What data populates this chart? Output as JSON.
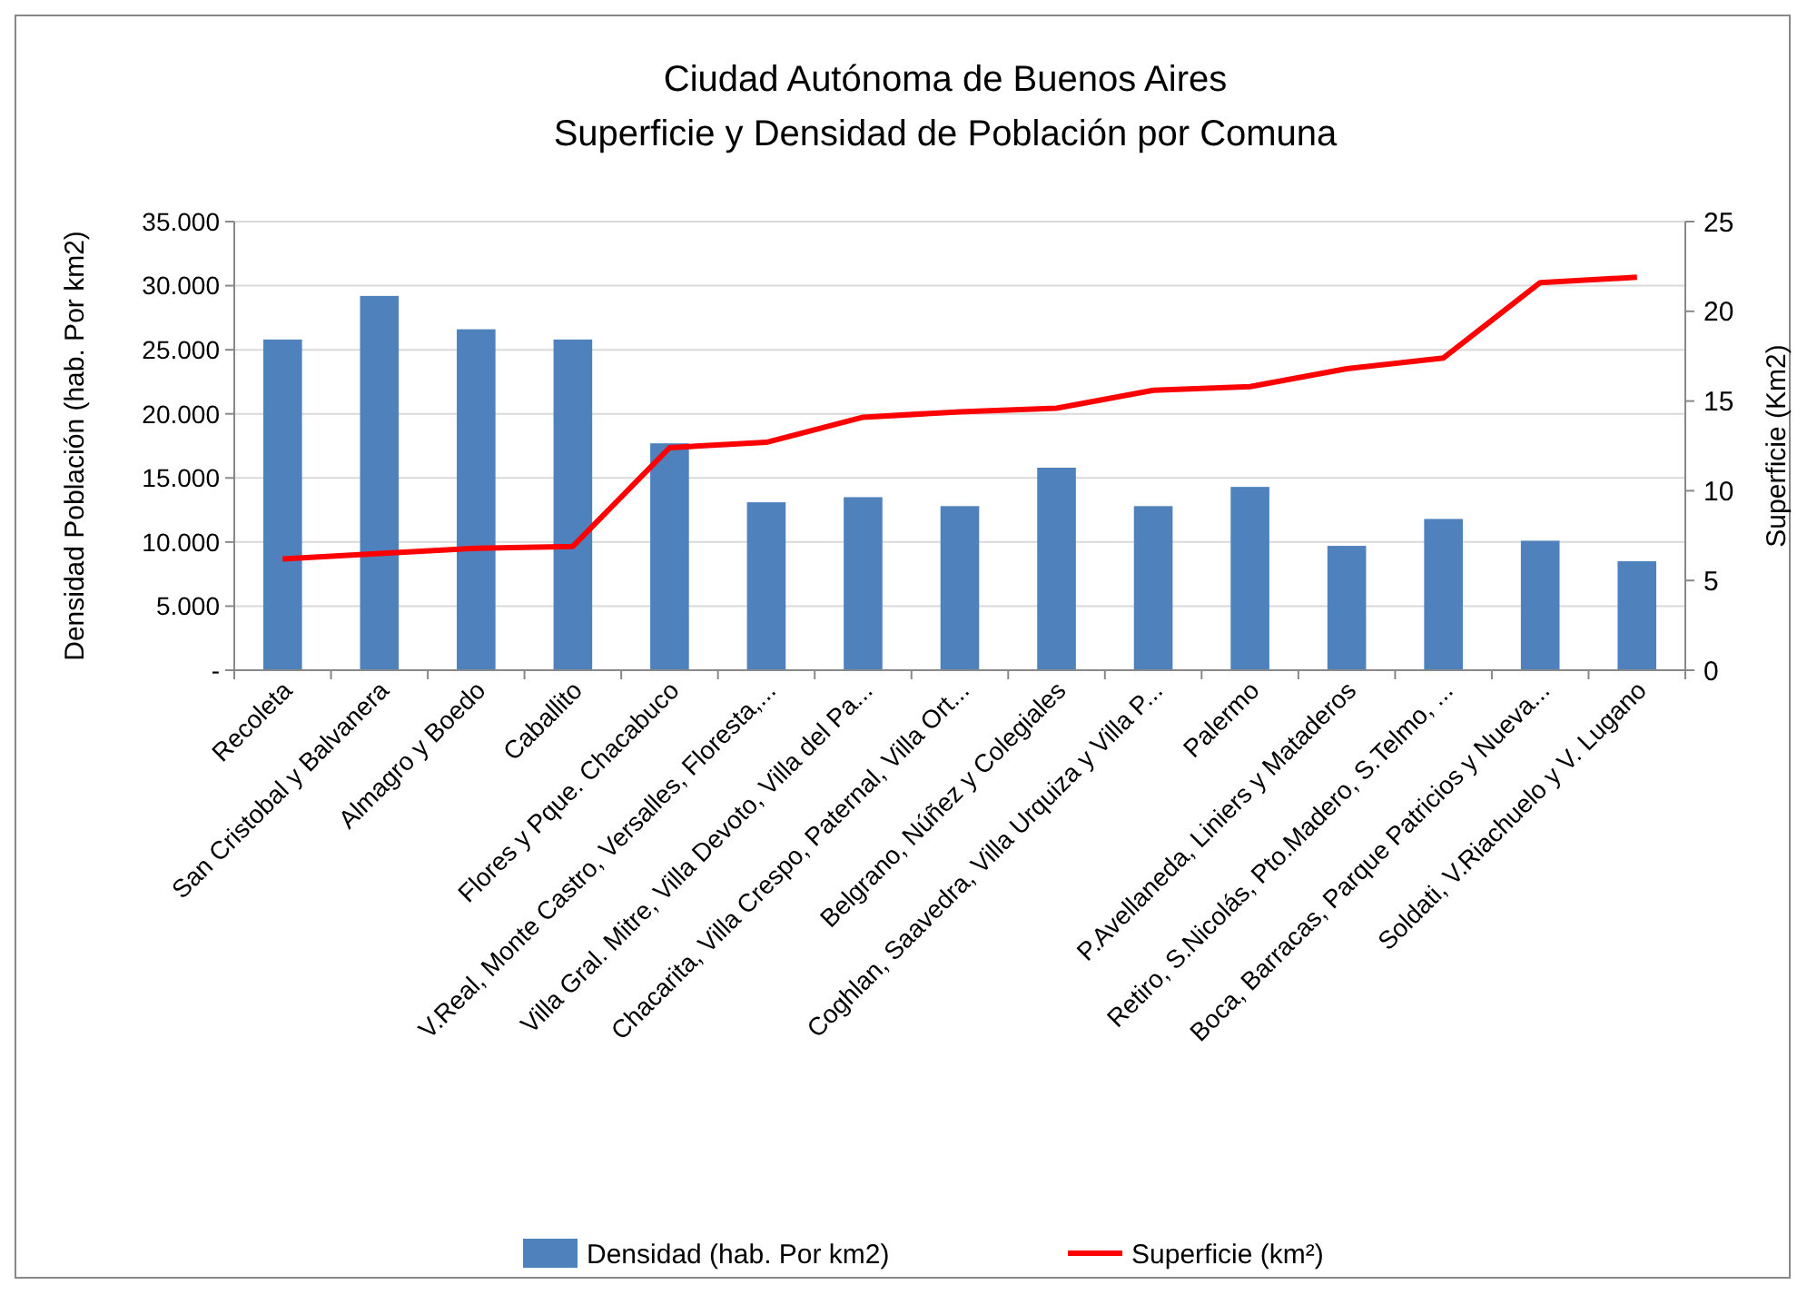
{
  "chart_data": {
    "type": "bar",
    "title": "Ciudad Autónoma de Buenos Aires",
    "subtitle": "Superficie y Densidad de Población por Comuna",
    "ylabel": "Densidad Población (hab. Por km2)",
    "y2label": "Superficie (Km2)",
    "categories": [
      "Recoleta",
      "San Cristobal y Balvanera",
      "Almagro y Boedo",
      "Caballito",
      "Flores y Pque. Chacabuco",
      "V.Real, Monte Castro, Versalles, Floresta,...",
      "Villa Gral. Mitre, Villa Devoto, Villa del Pa...",
      "Chacarita, Villa Crespo, Paternal, Villa Ort...",
      "Belgrano, Núñez y Colegiales",
      "Coghlan, Saavedra, Villa Urquiza y Villa P...",
      "Palermo",
      "P.Avellaneda, Liniers y Mataderos",
      "Retiro, S.Nicolás, Pto.Madero, S.Telmo, ...",
      "Boca, Barracas, Parque Patricios y Nueva...",
      "Soldati, V.Riachuelo y V. Lugano"
    ],
    "series": [
      {
        "name": "Densidad (hab. Por km2)",
        "color": "#4f81bd",
        "values": [
          25800,
          29200,
          26600,
          25800,
          17700,
          13100,
          13500,
          12800,
          15800,
          12800,
          14300,
          9700,
          11800,
          10100,
          8500
        ]
      },
      {
        "name": "Superficie (km²)",
        "type": "line",
        "axis": "y2",
        "color": "#ff0000",
        "values": [
          6.2,
          6.5,
          6.8,
          6.9,
          12.4,
          12.7,
          14.1,
          14.4,
          14.6,
          15.6,
          15.8,
          16.8,
          17.4,
          21.6,
          21.9
        ]
      }
    ],
    "ylim": [
      0,
      35000
    ],
    "yticks": [
      {
        "value": 0,
        "label": "-"
      },
      {
        "value": 5000,
        "label": "5.000"
      },
      {
        "value": 10000,
        "label": "10.000"
      },
      {
        "value": 15000,
        "label": "15.000"
      },
      {
        "value": 20000,
        "label": "20.000"
      },
      {
        "value": 25000,
        "label": "25.000"
      },
      {
        "value": 30000,
        "label": "30.000"
      },
      {
        "value": 35000,
        "label": "35.000"
      }
    ],
    "y2lim": [
      0,
      25
    ],
    "y2ticks": [
      0,
      5,
      10,
      15,
      20,
      25
    ],
    "grid": "y",
    "legend": "bottom",
    "marker": "none"
  }
}
